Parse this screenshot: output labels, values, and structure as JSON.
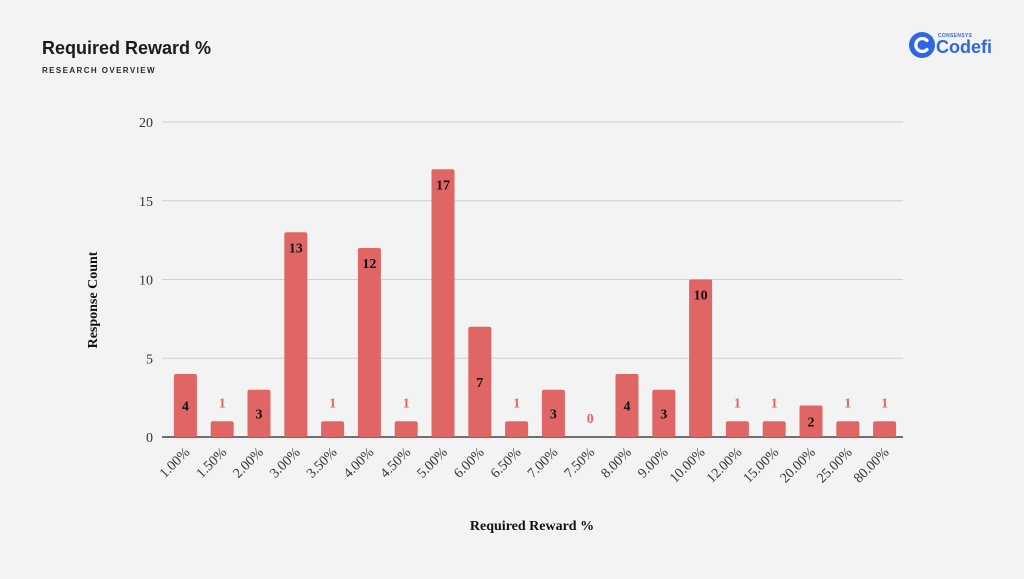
{
  "header": {
    "title": "Required Reward %",
    "subtitle": "RESEARCH OVERVIEW"
  },
  "logo": {
    "small_text": "CONSENSYS",
    "brand_text": "Codefi",
    "icon": "codefi-logo-icon"
  },
  "colors": {
    "bar": "#e06666",
    "label_inside": "#111111",
    "label_outside": "#e06666",
    "grid": "#cfcfcf",
    "axis": "#444444",
    "brand": "#2f66e6"
  },
  "chart_data": {
    "type": "bar",
    "title": "",
    "xlabel": "Required Reward %",
    "ylabel": "Response Count",
    "categories": [
      "1.00%",
      "1.50%",
      "2.00%",
      "3.00%",
      "3.50%",
      "4.00%",
      "4.50%",
      "5.00%",
      "6.00%",
      "6.50%",
      "7.00%",
      "7.50%",
      "8.00%",
      "9.00%",
      "10.00%",
      "12.00%",
      "15.00%",
      "20.00%",
      "25.00%",
      "80.00%"
    ],
    "values": [
      4,
      1,
      3,
      13,
      1,
      12,
      1,
      17,
      7,
      1,
      3,
      0,
      4,
      3,
      10,
      1,
      1,
      2,
      1,
      1
    ],
    "ylim": [
      0,
      20
    ],
    "yticks": [
      0,
      5,
      10,
      15,
      20
    ],
    "grid": true,
    "legend": "none"
  }
}
